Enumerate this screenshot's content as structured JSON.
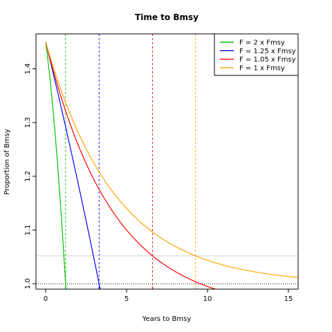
{
  "chart_data": {
    "type": "line",
    "title": "Time to Bmsy",
    "xlabel": "Years to Bmsy",
    "ylabel": "Proportion of Bmsy",
    "xlim": [
      -0.6,
      15.6
    ],
    "ylim": [
      0.99,
      1.465
    ],
    "x_ticks": [
      0,
      5,
      10,
      15
    ],
    "y_ticks": [
      1.0,
      1.1,
      1.2,
      1.3,
      1.4
    ],
    "x_tick_labels": [
      "0",
      "5",
      "10",
      "15"
    ],
    "y_tick_labels": [
      "1.0",
      "1.1",
      "1.2",
      "1.3",
      "1.4"
    ],
    "grid": false,
    "legend_position": "top-right",
    "series": [
      {
        "name": "F = 2 x Fmsy",
        "color": "#00c000",
        "start": 1.45,
        "end_x": 1.5,
        "time_to_target": 1.23
      },
      {
        "name": "F = 1.25 x Fmsy",
        "color": "#0000ff",
        "start": 1.45,
        "end_x": 4.5,
        "time_to_target": 3.3
      },
      {
        "name": "F = 1.05 x Fmsy",
        "color": "#ff0000",
        "start": 1.45,
        "end_x": 11.8,
        "time_to_target": 6.6
      },
      {
        "name": "F = 1 x Fmsy",
        "color": "#ffa500",
        "start": 1.45,
        "end_x": 15.6,
        "time_to_target": 9.25
      }
    ],
    "reference_lines": [
      {
        "y": 1.0,
        "color": "#000000",
        "style": "dotted"
      },
      {
        "y": 1.052,
        "color": "#d3d3d3",
        "style": "solid"
      }
    ]
  }
}
